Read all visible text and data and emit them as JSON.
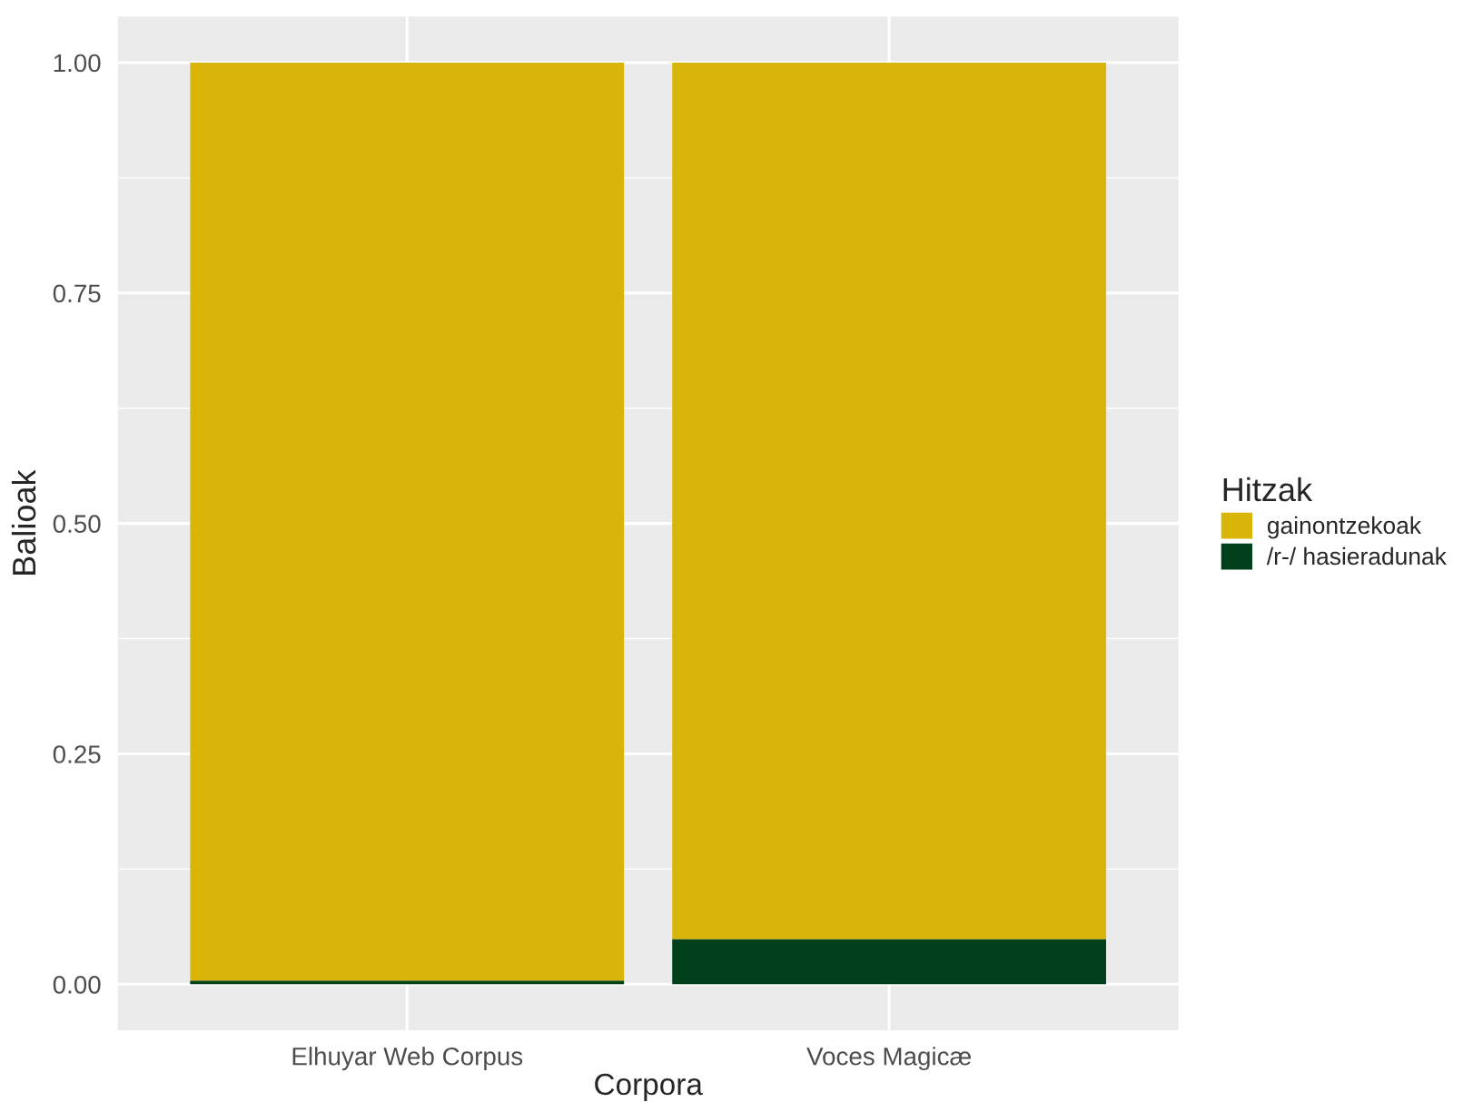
{
  "chart_data": {
    "type": "bar",
    "stacked": true,
    "xlabel": "Corpora",
    "ylabel": "Balioak",
    "legend_title": "Hitzak",
    "categories": [
      "Elhuyar Web Corpus",
      "Voces Magicæ"
    ],
    "series": [
      {
        "name": "/r-/ hasieradunak",
        "color": "#00401a",
        "values": [
          0.004,
          0.049
        ]
      },
      {
        "name": "gainontzekoak",
        "color": "#d9b50a",
        "values": [
          0.996,
          0.951
        ]
      }
    ],
    "ylim": [
      -0.05,
      1.05
    ],
    "yticks": [
      {
        "value": 0,
        "label": "0.00"
      },
      {
        "value": 0.25,
        "label": "0.25"
      },
      {
        "value": 0.5,
        "label": "0.50"
      },
      {
        "value": 0.75,
        "label": "0.75"
      },
      {
        "value": 1,
        "label": "1.00"
      }
    ],
    "grid": true,
    "legend": "right"
  }
}
